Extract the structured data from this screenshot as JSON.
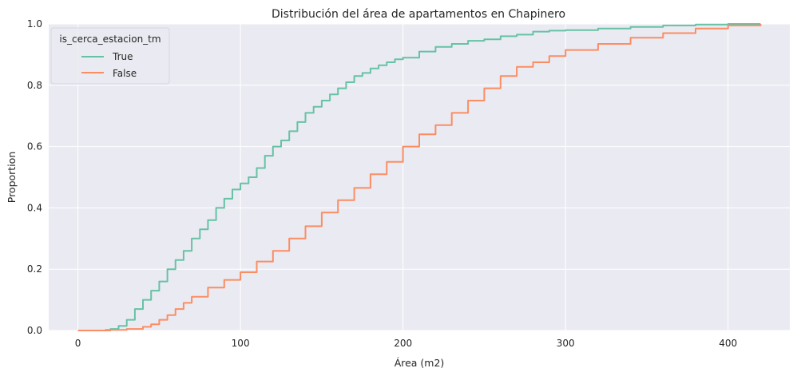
{
  "chart_data": {
    "type": "line",
    "subtype": "ecdf",
    "title": "Distribución del área de apartamentos en Chapinero",
    "xlabel": "Área (m2)",
    "ylabel": "Proportion",
    "xlim": [
      -18,
      438
    ],
    "ylim": [
      0,
      1
    ],
    "xticks": [
      0,
      100,
      200,
      300,
      400
    ],
    "xtick_labels": [
      "0",
      "100",
      "200",
      "300",
      "400"
    ],
    "yticks": [
      0,
      0.2,
      0.4,
      0.6,
      0.8,
      1.0
    ],
    "ytick_labels": [
      "0.0",
      "0.2",
      "0.4",
      "0.6",
      "0.8",
      "1.0"
    ],
    "grid": true,
    "legend": {
      "title": "is_cerca_estacion_tm",
      "placement": "top-left"
    },
    "series": [
      {
        "name": "True",
        "color": "#66c2a5",
        "x": [
          10,
          17,
          20,
          25,
          30,
          35,
          40,
          45,
          50,
          55,
          60,
          65,
          70,
          75,
          80,
          85,
          90,
          95,
          100,
          105,
          110,
          115,
          120,
          125,
          130,
          135,
          140,
          145,
          150,
          155,
          160,
          165,
          170,
          175,
          180,
          185,
          190,
          195,
          200,
          210,
          220,
          230,
          240,
          250,
          260,
          270,
          280,
          290,
          300,
          320,
          340,
          360,
          380,
          400,
          420
        ],
        "y": [
          0.0,
          0.002,
          0.005,
          0.015,
          0.035,
          0.07,
          0.1,
          0.13,
          0.16,
          0.2,
          0.23,
          0.26,
          0.3,
          0.33,
          0.36,
          0.4,
          0.43,
          0.46,
          0.48,
          0.5,
          0.53,
          0.57,
          0.6,
          0.62,
          0.65,
          0.68,
          0.71,
          0.73,
          0.75,
          0.77,
          0.79,
          0.81,
          0.83,
          0.84,
          0.855,
          0.865,
          0.875,
          0.885,
          0.89,
          0.91,
          0.925,
          0.935,
          0.945,
          0.95,
          0.96,
          0.965,
          0.975,
          0.978,
          0.98,
          0.985,
          0.99,
          0.995,
          0.998,
          1.0,
          1.0
        ]
      },
      {
        "name": "False",
        "color": "#fc8d62",
        "x": [
          0,
          20,
          30,
          40,
          45,
          50,
          55,
          60,
          65,
          70,
          80,
          90,
          100,
          110,
          120,
          130,
          140,
          150,
          160,
          170,
          180,
          190,
          200,
          210,
          220,
          230,
          240,
          250,
          260,
          270,
          280,
          290,
          300,
          320,
          340,
          360,
          380,
          400,
          420
        ],
        "y": [
          0.0,
          0.002,
          0.005,
          0.012,
          0.02,
          0.035,
          0.05,
          0.07,
          0.09,
          0.11,
          0.14,
          0.165,
          0.19,
          0.225,
          0.26,
          0.3,
          0.34,
          0.385,
          0.425,
          0.465,
          0.51,
          0.55,
          0.6,
          0.64,
          0.67,
          0.71,
          0.75,
          0.79,
          0.83,
          0.86,
          0.875,
          0.895,
          0.915,
          0.935,
          0.955,
          0.97,
          0.985,
          0.995,
          1.0
        ]
      }
    ]
  }
}
